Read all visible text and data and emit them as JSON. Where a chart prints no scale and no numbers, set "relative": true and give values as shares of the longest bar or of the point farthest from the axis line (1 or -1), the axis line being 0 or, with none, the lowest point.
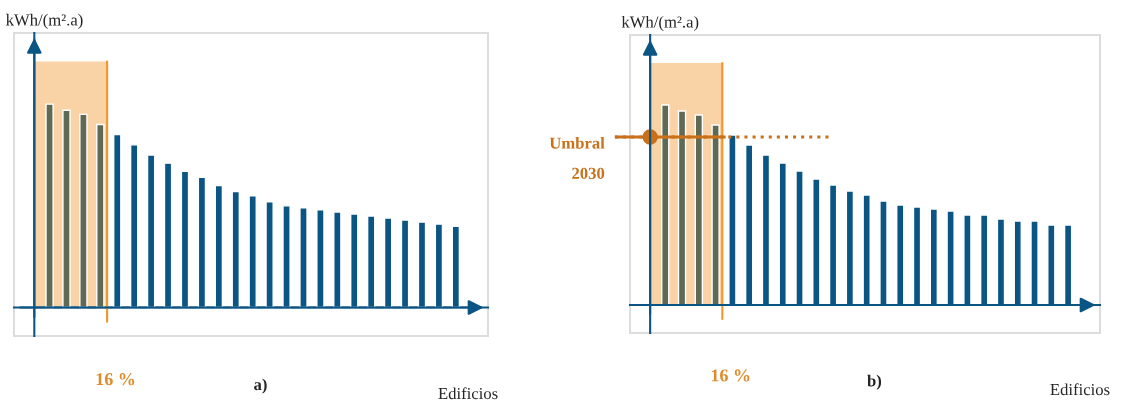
{
  "chart_data": [
    {
      "type": "bar",
      "relative": true,
      "ylabel": "kWh/(m².a)",
      "xlabel": "Edificios",
      "categories": [
        null,
        null,
        null,
        null,
        null,
        null,
        null,
        null,
        null,
        null,
        null,
        null,
        null,
        null,
        null,
        null,
        null,
        null,
        null,
        null,
        null,
        null,
        null,
        null,
        null
      ],
      "values": [
        1.0,
        0.97,
        0.95,
        0.9,
        0.85,
        0.8,
        0.75,
        0.71,
        0.67,
        0.64,
        0.6,
        0.57,
        0.55,
        0.52,
        0.5,
        0.49,
        0.48,
        0.47,
        0.46,
        0.45,
        0.44,
        0.43,
        0.42,
        0.41,
        0.4
      ],
      "colors": [
        "#5e6a56",
        "#5e6a56",
        "#5e6a56",
        "#5e6a56",
        "#0b5584",
        "#0b5584",
        "#0b5584",
        "#0b5584",
        "#0b5584",
        "#0b5584",
        "#0b5584",
        "#0b5584",
        "#0b5584",
        "#0b5584",
        "#0b5584",
        "#0b5584",
        "#0b5584",
        "#0b5584",
        "#0b5584",
        "#0b5584",
        "#0b5584",
        "#0b5584",
        "#0b5584",
        "#0b5584",
        "#0b5584"
      ],
      "annotations": [
        "16 %",
        "a)"
      ]
    },
    {
      "type": "bar",
      "relative": true,
      "ylabel": "kWh/(m².a)",
      "xlabel": "Edificios",
      "categories": [
        null,
        null,
        null,
        null,
        null,
        null,
        null,
        null,
        null,
        null,
        null,
        null,
        null,
        null,
        null,
        null,
        null,
        null,
        null,
        null,
        null,
        null,
        null,
        null,
        null
      ],
      "values": [
        1.0,
        0.97,
        0.95,
        0.9,
        0.85,
        0.8,
        0.75,
        0.71,
        0.67,
        0.63,
        0.6,
        0.57,
        0.55,
        0.52,
        0.5,
        0.49,
        0.48,
        0.47,
        0.45,
        0.45,
        0.43,
        0.42,
        0.42,
        0.4,
        0.4
      ],
      "colors": [
        "#5e6a56",
        "#5e6a56",
        "#5e6a56",
        "#5e6a56",
        "#0b5584",
        "#0b5584",
        "#0b5584",
        "#0b5584",
        "#0b5584",
        "#0b5584",
        "#0b5584",
        "#0b5584",
        "#0b5584",
        "#0b5584",
        "#0b5584",
        "#0b5584",
        "#0b5584",
        "#0b5584",
        "#0b5584",
        "#0b5584",
        "#0b5584",
        "#0b5584",
        "#0b5584",
        "#0b5584",
        "#0b5584"
      ],
      "ref_lines": [
        {
          "axis": "y",
          "value": 0.84,
          "label": "Umbral\n\n2030",
          "color": "#c8701a",
          "line_style": "dotted"
        }
      ],
      "annotations": [
        "16 %",
        "b)"
      ]
    }
  ]
}
